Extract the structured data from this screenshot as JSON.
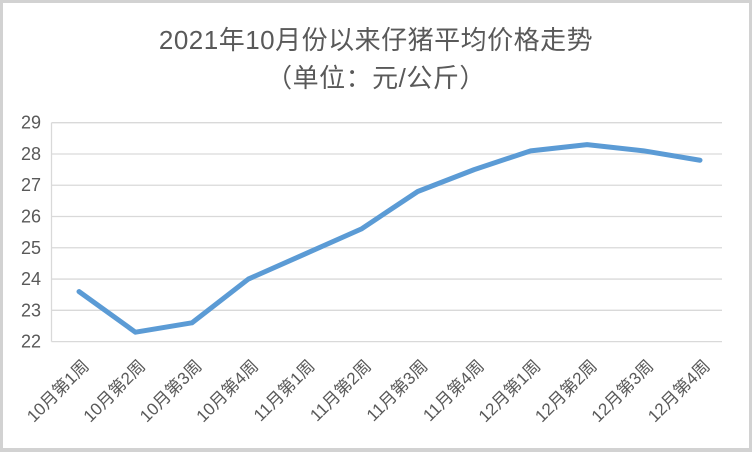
{
  "chart_data": {
    "type": "line",
    "title": "2021年10月份以来仔猪平均价格走势",
    "subtitle": "（单位：元/公斤）",
    "categories": [
      "10月第1周",
      "10月第2周",
      "10月第3周",
      "10月第4周",
      "11月第1周",
      "11月第2周",
      "11月第3周",
      "11月第4周",
      "12月第1周",
      "12月第2周",
      "12月第3周",
      "12月第4周"
    ],
    "values": [
      23.6,
      22.3,
      22.6,
      24.0,
      24.8,
      25.6,
      26.8,
      27.5,
      28.1,
      28.3,
      28.1,
      27.8
    ],
    "xlabel": "",
    "ylabel": "",
    "ylim": [
      22,
      29
    ],
    "y_ticks": [
      22,
      23,
      24,
      25,
      26,
      27,
      28,
      29
    ],
    "grid": true,
    "legend": "none",
    "colors": {
      "line": "#5B9BD5",
      "gridline": "#d9d9d9",
      "axis_text": "#595959",
      "title_text": "#595959",
      "frame_border": "#d2d2d2",
      "background": "#ffffff"
    }
  }
}
